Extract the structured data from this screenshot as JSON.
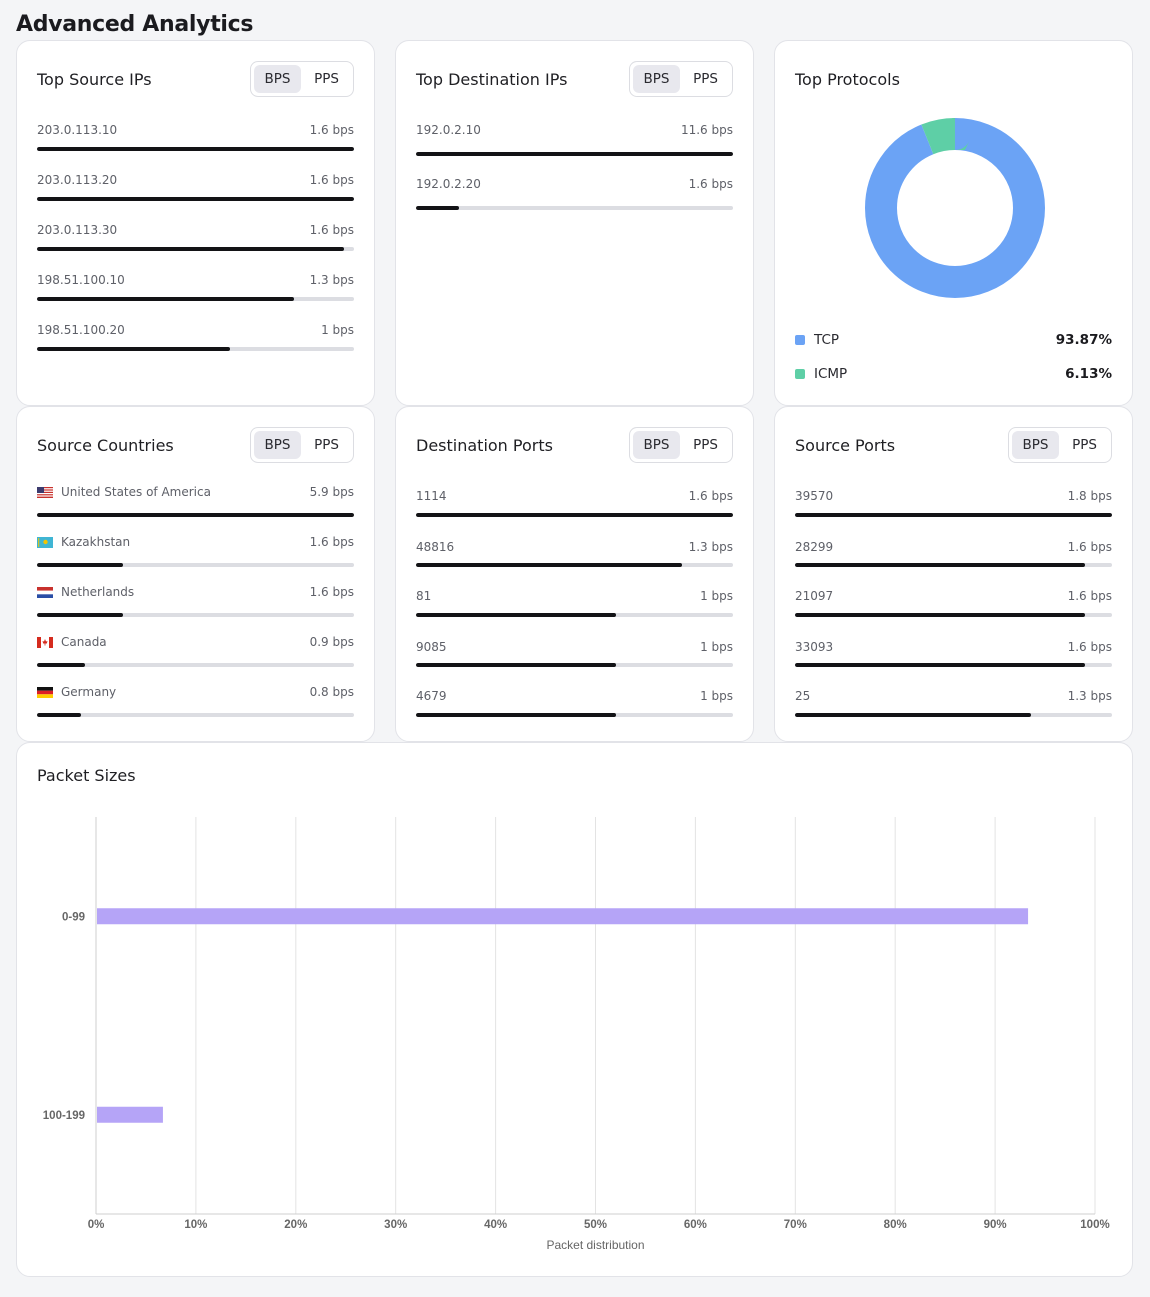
{
  "page": {
    "title": "Advanced Analytics"
  },
  "toggle": {
    "bps": "BPS",
    "pps": "PPS"
  },
  "top_source_ips": {
    "title": "Top Source IPs",
    "rows": [
      {
        "label": "203.0.113.10",
        "value": "1.6 bps",
        "fraction": 1.0
      },
      {
        "label": "203.0.113.20",
        "value": "1.6 bps",
        "fraction": 1.0
      },
      {
        "label": "203.0.113.30",
        "value": "1.6 bps",
        "fraction": 0.97
      },
      {
        "label": "198.51.100.10",
        "value": "1.3 bps",
        "fraction": 0.81
      },
      {
        "label": "198.51.100.20",
        "value": "1 bps",
        "fraction": 0.61
      }
    ]
  },
  "top_destination_ips": {
    "title": "Top Destination IPs",
    "rows": [
      {
        "label": "192.0.2.10",
        "value": "11.6 bps",
        "fraction": 1.0
      },
      {
        "label": "192.0.2.20",
        "value": "1.6 bps",
        "fraction": 0.135
      }
    ]
  },
  "top_protocols": {
    "title": "Top Protocols",
    "slices": [
      {
        "name": "TCP",
        "percent": 93.87,
        "label": "93.87%",
        "color": "#6ba3f5"
      },
      {
        "name": "ICMP",
        "percent": 6.13,
        "label": "6.13%",
        "color": "#5ecfa6"
      }
    ]
  },
  "source_countries": {
    "title": "Source Countries",
    "rows": [
      {
        "label": "United States of America",
        "flag": "us-flag-icon",
        "value": "5.9 bps",
        "fraction": 1.0
      },
      {
        "label": "Kazakhstan",
        "flag": "kz-flag-icon",
        "value": "1.6 bps",
        "fraction": 0.27
      },
      {
        "label": "Netherlands",
        "flag": "nl-flag-icon",
        "value": "1.6 bps",
        "fraction": 0.27
      },
      {
        "label": "Canada",
        "flag": "ca-flag-icon",
        "value": "0.9 bps",
        "fraction": 0.15
      },
      {
        "label": "Germany",
        "flag": "de-flag-icon",
        "value": "0.8 bps",
        "fraction": 0.14
      }
    ]
  },
  "destination_ports": {
    "title": "Destination Ports",
    "rows": [
      {
        "label": "1114",
        "value": "1.6 bps",
        "fraction": 1.0
      },
      {
        "label": "48816",
        "value": "1.3 bps",
        "fraction": 0.84
      },
      {
        "label": "81",
        "value": "1 bps",
        "fraction": 0.63
      },
      {
        "label": "9085",
        "value": "1 bps",
        "fraction": 0.63
      },
      {
        "label": "4679",
        "value": "1 bps",
        "fraction": 0.63
      }
    ]
  },
  "source_ports": {
    "title": "Source Ports",
    "rows": [
      {
        "label": "39570",
        "value": "1.8 bps",
        "fraction": 1.0
      },
      {
        "label": "28299",
        "value": "1.6 bps",
        "fraction": 0.915
      },
      {
        "label": "21097",
        "value": "1.6 bps",
        "fraction": 0.915
      },
      {
        "label": "33093",
        "value": "1.6 bps",
        "fraction": 0.915
      },
      {
        "label": "25",
        "value": "1.3 bps",
        "fraction": 0.745
      }
    ]
  },
  "packet_sizes": {
    "title": "Packet Sizes"
  },
  "chart_data": {
    "type": "bar",
    "orientation": "horizontal",
    "categories": [
      "0-99",
      "100-199"
    ],
    "values": [
      93.3,
      6.7
    ],
    "xlabel": "Packet distribution",
    "ylabel": "",
    "xlim": [
      0,
      100
    ],
    "x_ticks": [
      "0%",
      "10%",
      "20%",
      "30%",
      "40%",
      "50%",
      "60%",
      "70%",
      "80%",
      "90%",
      "100%"
    ],
    "grid": true,
    "bar_color": "#b5a4f7"
  }
}
